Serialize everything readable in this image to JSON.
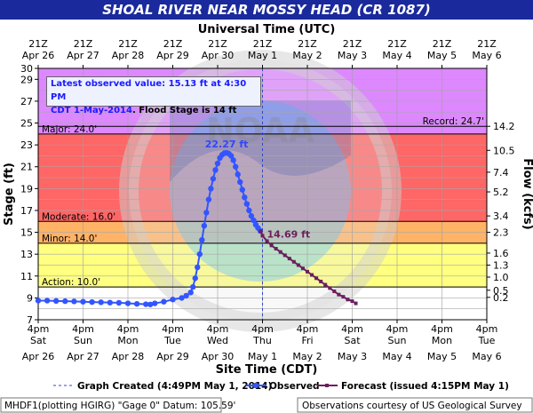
{
  "chart_data": {
    "type": "line",
    "title": "SHOAL RIVER NEAR MOSSY HEAD (CR 1087)",
    "top_axis_title": "Universal Time (UTC)",
    "xlabel": "Site Time (CDT)",
    "ylabel": "Stage (ft)",
    "y2label": "Flow (kcfs)",
    "ylim": [
      7,
      30
    ],
    "xlim": [
      "Apr 26 4pm",
      "May 6 4pm"
    ],
    "y_ticks": [
      7,
      9,
      11,
      13,
      15,
      17,
      19,
      21,
      23,
      25,
      27,
      29,
      30
    ],
    "flow_ticks": [
      {
        "stage": 9.05,
        "label": "0.2"
      },
      {
        "stage": 9.7,
        "label": "0.5"
      },
      {
        "stage": 10.9,
        "label": "1.0"
      },
      {
        "stage": 12.0,
        "label": "1.3"
      },
      {
        "stage": 13.1,
        "label": "1.6"
      },
      {
        "stage": 15.0,
        "label": "2.3"
      },
      {
        "stage": 16.5,
        "label": "3.4"
      },
      {
        "stage": 18.7,
        "label": "5.2"
      },
      {
        "stage": 20.5,
        "label": "7.4"
      },
      {
        "stage": 22.5,
        "label": "10.5"
      },
      {
        "stage": 24.7,
        "label": "14.2"
      }
    ],
    "x_ticks_bottom": [
      {
        "time": "4pm",
        "day": "Sat",
        "date": "Apr 26"
      },
      {
        "time": "4pm",
        "day": "Sun",
        "date": "Apr 27"
      },
      {
        "time": "4pm",
        "day": "Mon",
        "date": "Apr 28"
      },
      {
        "time": "4pm",
        "day": "Tue",
        "date": "Apr 29"
      },
      {
        "time": "4pm",
        "day": "Wed",
        "date": "Apr 30"
      },
      {
        "time": "4pm",
        "day": "Thu",
        "date": "May 1"
      },
      {
        "time": "4pm",
        "day": "Fri",
        "date": "May 2"
      },
      {
        "time": "4pm",
        "day": "Sat",
        "date": "May 3"
      },
      {
        "time": "4pm",
        "day": "Sun",
        "date": "May 4"
      },
      {
        "time": "4pm",
        "day": "Mon",
        "date": "May 5"
      },
      {
        "time": "4pm",
        "day": "Tue",
        "date": "May 6"
      }
    ],
    "x_ticks_top": [
      {
        "time": "21Z",
        "date": "Apr 26"
      },
      {
        "time": "21Z",
        "date": "Apr 27"
      },
      {
        "time": "21Z",
        "date": "Apr 28"
      },
      {
        "time": "21Z",
        "date": "Apr 29"
      },
      {
        "time": "21Z",
        "date": "Apr 30"
      },
      {
        "time": "21Z",
        "date": "May 1"
      },
      {
        "time": "21Z",
        "date": "May 2"
      },
      {
        "time": "21Z",
        "date": "May 3"
      },
      {
        "time": "21Z",
        "date": "May 4"
      },
      {
        "time": "21Z",
        "date": "May 5"
      },
      {
        "time": "21Z",
        "date": "May 6"
      }
    ],
    "bands": [
      {
        "from": 7,
        "to": 10,
        "color": "#ffffff"
      },
      {
        "from": 10,
        "to": 14,
        "color": "#ffff80"
      },
      {
        "from": 14,
        "to": 16,
        "color": "#ffb366"
      },
      {
        "from": 16,
        "to": 24,
        "color": "#ff6666"
      },
      {
        "from": 24,
        "to": 30,
        "color": "#dd88ff"
      }
    ],
    "thresholds": [
      {
        "label": "Action: 10.0'",
        "value": 10.0
      },
      {
        "label": "Minor: 14.0'",
        "value": 14.0
      },
      {
        "label": "Moderate: 16.0'",
        "value": 16.0
      },
      {
        "label": "Major: 24.0'",
        "value": 24.0
      }
    ],
    "record": {
      "label": "Record: 24.7'",
      "value": 24.7
    },
    "series": [
      {
        "name": "Observed",
        "color": "#3355ff",
        "points": [
          [
            0.0,
            8.75
          ],
          [
            0.2,
            8.75
          ],
          [
            0.4,
            8.72
          ],
          [
            0.6,
            8.7
          ],
          [
            0.8,
            8.68
          ],
          [
            1.0,
            8.65
          ],
          [
            1.2,
            8.62
          ],
          [
            1.4,
            8.6
          ],
          [
            1.6,
            8.57
          ],
          [
            1.8,
            8.55
          ],
          [
            2.0,
            8.5
          ],
          [
            2.2,
            8.45
          ],
          [
            2.4,
            8.42
          ],
          [
            2.5,
            8.4
          ],
          [
            2.6,
            8.5
          ],
          [
            2.8,
            8.65
          ],
          [
            3.0,
            8.85
          ],
          [
            3.2,
            9.0
          ],
          [
            3.3,
            9.2
          ],
          [
            3.4,
            9.5
          ],
          [
            3.45,
            10.0
          ],
          [
            3.5,
            10.8
          ],
          [
            3.55,
            11.8
          ],
          [
            3.6,
            13.0
          ],
          [
            3.65,
            14.3
          ],
          [
            3.7,
            15.6
          ],
          [
            3.75,
            16.8
          ],
          [
            3.8,
            18.0
          ],
          [
            3.85,
            19.0
          ],
          [
            3.9,
            19.9
          ],
          [
            3.95,
            20.7
          ],
          [
            4.0,
            21.3
          ],
          [
            4.05,
            21.8
          ],
          [
            4.1,
            22.1
          ],
          [
            4.15,
            22.25
          ],
          [
            4.2,
            22.27
          ],
          [
            4.25,
            22.2
          ],
          [
            4.3,
            22.0
          ],
          [
            4.35,
            21.6
          ],
          [
            4.4,
            21.0
          ],
          [
            4.45,
            20.3
          ],
          [
            4.5,
            19.6
          ],
          [
            4.55,
            18.9
          ],
          [
            4.6,
            18.2
          ],
          [
            4.65,
            17.6
          ],
          [
            4.7,
            17.0
          ],
          [
            4.75,
            16.5
          ],
          [
            4.8,
            16.1
          ],
          [
            4.85,
            15.7
          ],
          [
            4.9,
            15.4
          ],
          [
            4.95,
            15.13
          ]
        ]
      },
      {
        "name": "Forecast",
        "color": "#6b1f5e",
        "points": [
          [
            4.96,
            15.1
          ],
          [
            5.0,
            14.69
          ],
          [
            5.1,
            14.2
          ],
          [
            5.2,
            13.8
          ],
          [
            5.3,
            13.5
          ],
          [
            5.4,
            13.2
          ],
          [
            5.5,
            12.9
          ],
          [
            5.6,
            12.6
          ],
          [
            5.7,
            12.3
          ],
          [
            5.8,
            12.0
          ],
          [
            5.9,
            11.7
          ],
          [
            6.0,
            11.4
          ],
          [
            6.1,
            11.1
          ],
          [
            6.2,
            10.8
          ],
          [
            6.3,
            10.5
          ],
          [
            6.4,
            10.2
          ],
          [
            6.5,
            9.9
          ],
          [
            6.6,
            9.6
          ],
          [
            6.7,
            9.3
          ],
          [
            6.8,
            9.1
          ],
          [
            6.9,
            8.85
          ],
          [
            7.0,
            8.7
          ],
          [
            7.08,
            8.5
          ]
        ]
      }
    ],
    "annotations": [
      {
        "text": "22.27 ft",
        "x": 4.2,
        "y": 22.27
      },
      {
        "text": "14.69 ft",
        "x": 5.0,
        "y": 14.69
      }
    ],
    "graph_created_x": 5.0,
    "info_box": {
      "line1": "Latest observed value: 15.13 ft at 4:30 PM",
      "line2a": "CDT 1-May-2014",
      "line2b": ". Flood Stage is 14 ft"
    },
    "legend": {
      "graph_created": "Graph Created (4:49PM May 1, 2014)",
      "observed": "Observed",
      "forecast": "Forecast (issued 4:15PM May 1)"
    },
    "footer_left": "MHDF1(plotting HGIRG) \"Gage 0\" Datum: 105.59'",
    "footer_right": "Observations courtesy of US Geological Survey",
    "watermark": "NATIONAL OCEANIC AND ATMOSPHERIC ADMINISTRATION · U.S. DEPARTMENT OF COMMERCE · NOAA"
  }
}
